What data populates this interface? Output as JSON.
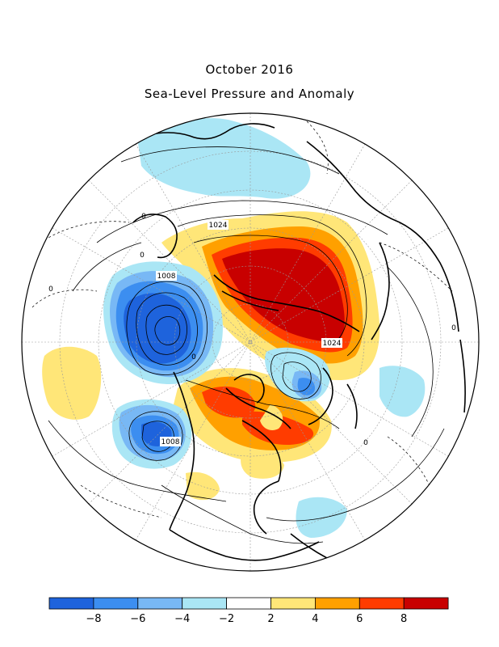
{
  "title": "October 2016",
  "subtitle": "Sea-Level Pressure and Anomaly",
  "isobar_labels": [
    "1024",
    "1008",
    "1024",
    "1008"
  ],
  "zero_labels": [
    "0",
    "0",
    "0",
    "0",
    "0",
    "0"
  ],
  "colorbar": {
    "colors": [
      "#1e63dc",
      "#3c8ef0",
      "#78b8f5",
      "#aae6f5",
      "#ffffff",
      "#ffe678",
      "#ffa000",
      "#ff3c00",
      "#c80000"
    ],
    "ticks": [
      "−8",
      "−6",
      "−4",
      "−2",
      "2",
      "4",
      "6",
      "8"
    ]
  }
}
